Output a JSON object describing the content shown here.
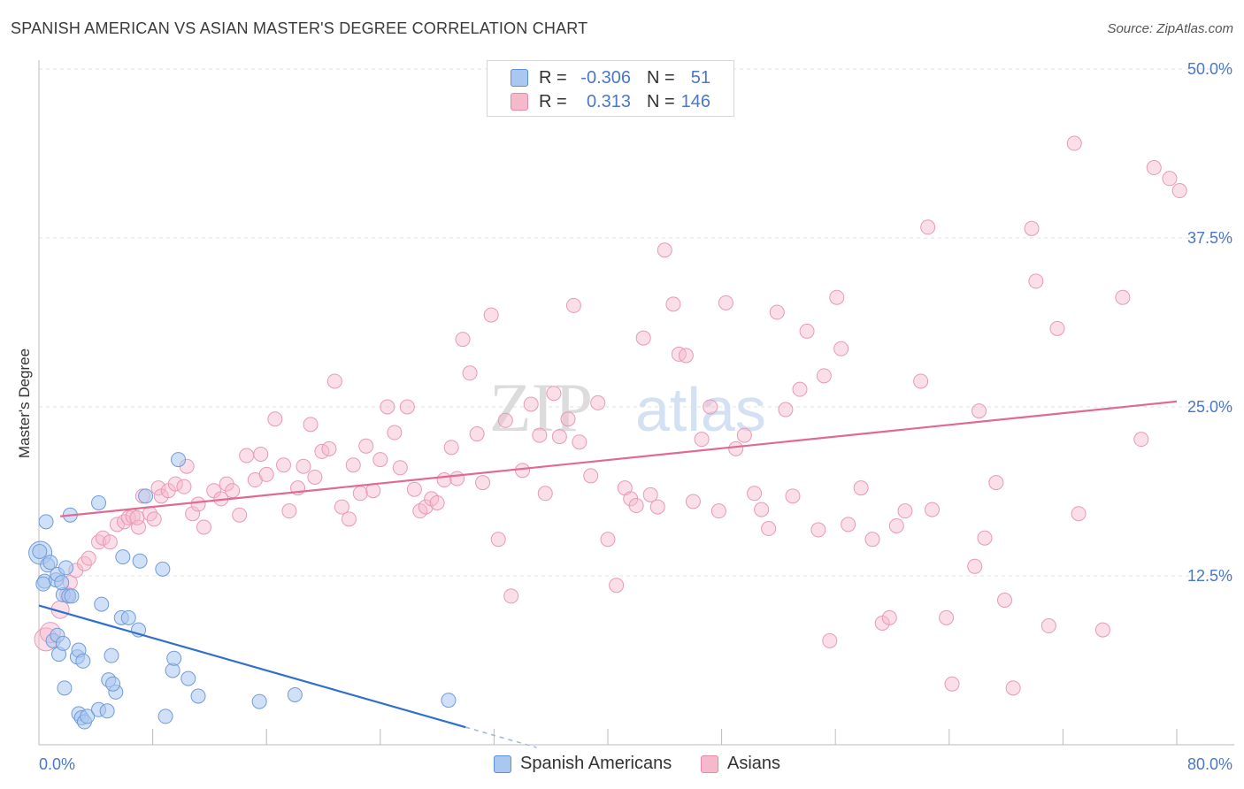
{
  "header": {
    "title": "SPANISH AMERICAN VS ASIAN MASTER'S DEGREE CORRELATION CHART",
    "source": "Source: ZipAtlas.com"
  },
  "watermark": {
    "zip": "ZIP",
    "atlas": "atlas"
  },
  "legend": {
    "rows": [
      {
        "r_label": "R =",
        "r_value": "-0.306",
        "n_label": "N =",
        "n_value": "51",
        "color": "#a9c7ef",
        "stroke": "#5b8fd6"
      },
      {
        "r_label": "R =",
        "r_value": "0.313",
        "n_label": "N =",
        "n_value": "146",
        "color": "#f6b9cb",
        "stroke": "#e48aa6"
      }
    ]
  },
  "bottom_legend": [
    {
      "label": "Spanish Americans",
      "color": "#a9c7ef",
      "stroke": "#5b8fd6"
    },
    {
      "label": "Asians",
      "color": "#f6b9cb",
      "stroke": "#e48aa6"
    }
  ],
  "chart_data": {
    "type": "scatter",
    "ylabel": "Master's Degree",
    "x_tick_labels": [
      "0.0%",
      "80.0%"
    ],
    "y_tick_labels": [
      "12.5%",
      "25.0%",
      "37.5%",
      "50.0%"
    ],
    "y_ticks": [
      12.5,
      25.0,
      37.5,
      50.0
    ],
    "xlim": [
      0,
      80
    ],
    "ylim": [
      0,
      51
    ],
    "grid": true,
    "colors": {
      "blue": "#4f86d4",
      "blue_line": "#2e6fd0",
      "pink": "#e38aa7",
      "pink_line": "#e06a92",
      "tick_label": "#4a77c9"
    },
    "series": [
      {
        "name": "Spanish Americans",
        "trend": {
          "x": [
            0,
            30
          ],
          "y": [
            10.3,
            1.3
          ],
          "dash_extend_to": [
            35,
            -0.2
          ]
        },
        "points": [
          [
            0.1,
            14.2
          ],
          [
            0.4,
            12.1
          ],
          [
            0.5,
            16.5
          ],
          [
            0.6,
            13.3
          ],
          [
            0.8,
            13.5
          ],
          [
            1.0,
            7.7
          ],
          [
            1.2,
            12.2
          ],
          [
            1.3,
            8.1
          ],
          [
            1.3,
            12.6
          ],
          [
            1.4,
            6.7
          ],
          [
            1.7,
            11.1
          ],
          [
            1.7,
            7.5
          ],
          [
            1.8,
            4.2
          ],
          [
            1.9,
            13.1
          ],
          [
            2.1,
            11.0
          ],
          [
            2.2,
            17.0
          ],
          [
            2.3,
            11.0
          ],
          [
            2.7,
            6.5
          ],
          [
            2.8,
            7.0
          ],
          [
            2.8,
            2.3
          ],
          [
            3.0,
            2.0
          ],
          [
            3.1,
            6.2
          ],
          [
            3.2,
            1.7
          ],
          [
            3.4,
            2.1
          ],
          [
            4.2,
            2.6
          ],
          [
            4.2,
            17.9
          ],
          [
            4.4,
            10.4
          ],
          [
            4.8,
            2.5
          ],
          [
            4.9,
            4.8
          ],
          [
            5.1,
            6.6
          ],
          [
            5.4,
            3.9
          ],
          [
            5.2,
            4.5
          ],
          [
            5.8,
            9.4
          ],
          [
            5.9,
            13.9
          ],
          [
            6.3,
            9.4
          ],
          [
            7.0,
            8.5
          ],
          [
            7.1,
            13.6
          ],
          [
            7.5,
            18.4
          ],
          [
            8.7,
            13.0
          ],
          [
            8.9,
            2.1
          ],
          [
            9.4,
            5.5
          ],
          [
            9.5,
            6.4
          ],
          [
            9.8,
            21.1
          ],
          [
            10.5,
            4.9
          ],
          [
            11.2,
            3.6
          ],
          [
            15.5,
            3.2
          ],
          [
            18.0,
            3.7
          ],
          [
            28.8,
            3.3
          ],
          [
            0.05,
            14.3
          ],
          [
            1.6,
            12.0
          ],
          [
            0.3,
            11.9
          ]
        ]
      },
      {
        "name": "Asians",
        "trend": {
          "x": [
            1.5,
            80
          ],
          "y": [
            16.9,
            25.4
          ]
        },
        "points": [
          [
            0.5,
            7.8
          ],
          [
            0.8,
            8.3
          ],
          [
            1.5,
            10.0
          ],
          [
            2.0,
            11.1
          ],
          [
            2.2,
            12.0
          ],
          [
            2.6,
            12.9
          ],
          [
            3.2,
            13.4
          ],
          [
            3.5,
            13.8
          ],
          [
            4.2,
            15.0
          ],
          [
            4.5,
            15.3
          ],
          [
            5.0,
            15.0
          ],
          [
            5.5,
            16.3
          ],
          [
            6.0,
            16.5
          ],
          [
            6.3,
            16.8
          ],
          [
            6.6,
            16.9
          ],
          [
            7.0,
            16.1
          ],
          [
            7.3,
            18.4
          ],
          [
            7.8,
            17.1
          ],
          [
            8.1,
            16.7
          ],
          [
            8.4,
            19.0
          ],
          [
            8.6,
            18.4
          ],
          [
            9.1,
            18.8
          ],
          [
            9.6,
            19.3
          ],
          [
            10.2,
            19.1
          ],
          [
            10.4,
            20.6
          ],
          [
            10.8,
            17.1
          ],
          [
            11.2,
            17.8
          ],
          [
            11.6,
            16.1
          ],
          [
            12.3,
            18.8
          ],
          [
            12.8,
            18.2
          ],
          [
            13.2,
            19.3
          ],
          [
            13.6,
            18.8
          ],
          [
            14.1,
            17.0
          ],
          [
            14.6,
            21.4
          ],
          [
            15.2,
            19.6
          ],
          [
            15.6,
            21.5
          ],
          [
            16.0,
            20.0
          ],
          [
            16.6,
            24.1
          ],
          [
            17.2,
            20.7
          ],
          [
            17.6,
            17.3
          ],
          [
            18.2,
            19.0
          ],
          [
            18.6,
            20.6
          ],
          [
            19.1,
            23.7
          ],
          [
            19.4,
            19.8
          ],
          [
            19.9,
            21.7
          ],
          [
            20.4,
            21.9
          ],
          [
            20.8,
            26.9
          ],
          [
            21.3,
            17.6
          ],
          [
            21.8,
            16.7
          ],
          [
            22.1,
            20.7
          ],
          [
            22.6,
            18.6
          ],
          [
            23.0,
            22.1
          ],
          [
            23.5,
            18.8
          ],
          [
            24.0,
            21.1
          ],
          [
            24.5,
            25.0
          ],
          [
            25.0,
            23.1
          ],
          [
            25.4,
            20.5
          ],
          [
            25.9,
            25.0
          ],
          [
            26.4,
            18.9
          ],
          [
            26.8,
            17.3
          ],
          [
            27.2,
            17.6
          ],
          [
            27.6,
            18.2
          ],
          [
            28.0,
            17.9
          ],
          [
            28.5,
            19.6
          ],
          [
            29.0,
            22.0
          ],
          [
            29.4,
            19.7
          ],
          [
            29.8,
            30.0
          ],
          [
            30.3,
            27.5
          ],
          [
            30.8,
            23.0
          ],
          [
            31.2,
            19.4
          ],
          [
            31.8,
            31.8
          ],
          [
            32.3,
            15.2
          ],
          [
            32.8,
            24.0
          ],
          [
            33.2,
            11.0
          ],
          [
            34.0,
            20.3
          ],
          [
            34.6,
            25.2
          ],
          [
            35.2,
            22.9
          ],
          [
            35.6,
            18.6
          ],
          [
            36.2,
            26.0
          ],
          [
            36.6,
            22.8
          ],
          [
            37.2,
            24.1
          ],
          [
            37.6,
            32.5
          ],
          [
            38.0,
            22.4
          ],
          [
            38.8,
            19.9
          ],
          [
            39.3,
            25.3
          ],
          [
            40.0,
            15.2
          ],
          [
            40.6,
            11.8
          ],
          [
            41.2,
            19.0
          ],
          [
            41.6,
            18.2
          ],
          [
            42.0,
            17.7
          ],
          [
            42.5,
            30.1
          ],
          [
            43.0,
            18.5
          ],
          [
            43.5,
            17.6
          ],
          [
            44.0,
            36.6
          ],
          [
            44.6,
            32.6
          ],
          [
            45.0,
            28.9
          ],
          [
            45.5,
            28.8
          ],
          [
            46.0,
            18.0
          ],
          [
            46.6,
            22.6
          ],
          [
            47.2,
            25.0
          ],
          [
            47.8,
            17.3
          ],
          [
            48.3,
            32.7
          ],
          [
            49.0,
            21.9
          ],
          [
            49.6,
            22.9
          ],
          [
            50.3,
            18.6
          ],
          [
            50.8,
            17.4
          ],
          [
            51.3,
            16.0
          ],
          [
            51.9,
            32.0
          ],
          [
            52.5,
            24.8
          ],
          [
            53.0,
            18.4
          ],
          [
            53.5,
            26.3
          ],
          [
            54.0,
            30.6
          ],
          [
            54.8,
            15.9
          ],
          [
            55.2,
            27.3
          ],
          [
            55.6,
            7.7
          ],
          [
            56.1,
            33.1
          ],
          [
            56.4,
            29.3
          ],
          [
            56.9,
            16.3
          ],
          [
            57.8,
            19.0
          ],
          [
            58.6,
            15.2
          ],
          [
            59.3,
            9.0
          ],
          [
            59.8,
            9.4
          ],
          [
            60.3,
            16.2
          ],
          [
            60.9,
            17.3
          ],
          [
            62.0,
            26.9
          ],
          [
            62.5,
            38.3
          ],
          [
            62.8,
            17.4
          ],
          [
            63.8,
            9.4
          ],
          [
            64.2,
            4.5
          ],
          [
            65.8,
            13.2
          ],
          [
            66.1,
            24.7
          ],
          [
            66.5,
            15.3
          ],
          [
            67.3,
            19.4
          ],
          [
            67.9,
            10.7
          ],
          [
            68.5,
            4.2
          ],
          [
            69.8,
            38.2
          ],
          [
            70.1,
            34.3
          ],
          [
            71.0,
            8.8
          ],
          [
            71.6,
            30.8
          ],
          [
            72.8,
            44.5
          ],
          [
            73.1,
            17.1
          ],
          [
            74.8,
            8.5
          ],
          [
            76.2,
            33.1
          ],
          [
            77.5,
            22.6
          ],
          [
            78.4,
            42.7
          ],
          [
            79.5,
            41.9
          ],
          [
            80.2,
            41.0
          ],
          [
            6.9,
            16.8
          ]
        ]
      }
    ]
  }
}
